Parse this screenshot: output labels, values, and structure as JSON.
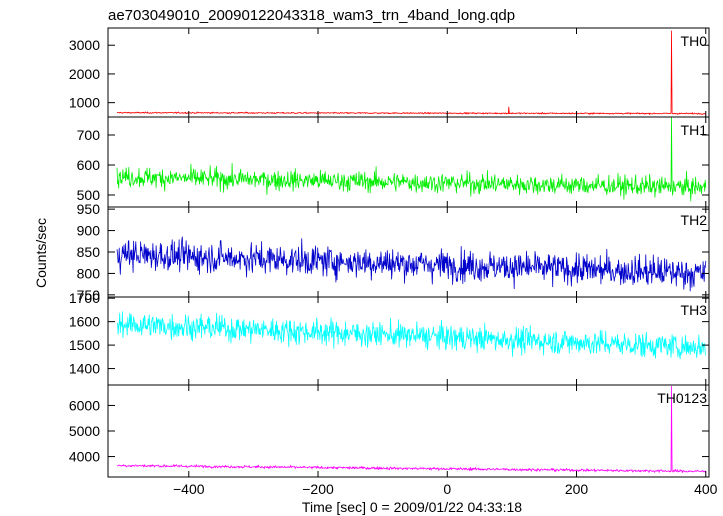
{
  "title": "ae703049010_20090122043318_wam3_trn_4band_long.qdp",
  "ylabel": "Counts/sec",
  "xlabel": "Time [sec] 0 = 2009/01/22 04:33:18",
  "chart_data": {
    "type": "line",
    "title": "ae703049010_20090122043318_wam3_trn_4band_long.qdp",
    "xlabel": "Time [sec] 0 = 2009/01/22 04:33:18",
    "ylabel": "Counts/sec",
    "xlim": [
      -525,
      405
    ],
    "xticks": [
      -400,
      -200,
      0,
      200,
      400
    ],
    "grid": false,
    "panels": [
      {
        "name": "TH0",
        "color": "#ff0000",
        "ylim": [
          500,
          3600
        ],
        "yticks": [
          1000,
          2000,
          3000
        ],
        "baseline_start": 650,
        "baseline_end": 620,
        "noise": 20,
        "spikes": [
          {
            "x": 347,
            "y": 3500
          },
          {
            "x": 95,
            "y": 850
          }
        ]
      },
      {
        "name": "TH1",
        "color": "#00ee00",
        "ylim": [
          460,
          760
        ],
        "yticks": [
          500,
          600,
          700
        ],
        "baseline_start": 560,
        "baseline_end": 525,
        "noise": 28,
        "spikes": [
          {
            "x": 347,
            "y": 760
          }
        ]
      },
      {
        "name": "TH2",
        "color": "#0000cc",
        "ylim": [
          745,
          955
        ],
        "yticks": [
          750,
          800,
          850,
          900,
          950
        ],
        "baseline_start": 845,
        "baseline_end": 800,
        "noise": 30,
        "spikes": []
      },
      {
        "name": "TH3",
        "color": "#00ffff",
        "ylim": [
          1330,
          1705
        ],
        "yticks": [
          1400,
          1500,
          1600,
          1700
        ],
        "baseline_start": 1590,
        "baseline_end": 1490,
        "noise": 45,
        "spikes": []
      },
      {
        "name": "TH0123",
        "color": "#ff00ff",
        "ylim": [
          3200,
          6800
        ],
        "yticks": [
          4000,
          5000,
          6000
        ],
        "baseline_start": 3650,
        "baseline_end": 3420,
        "noise": 45,
        "spikes": [
          {
            "x": 347,
            "y": 6750
          }
        ]
      }
    ]
  }
}
